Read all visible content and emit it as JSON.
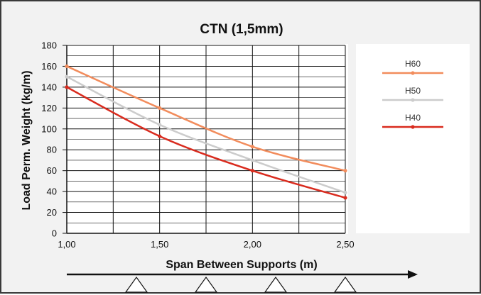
{
  "chart_data": {
    "type": "line",
    "title": "CTN (1,5mm)",
    "xlabel": "Span Between Supports (m)",
    "ylabel": "Load Perm. Weight (kg/m)",
    "xlim": [
      1.0,
      2.5
    ],
    "ylim": [
      0,
      180
    ],
    "x_ticks": [
      "1,00",
      "1,50",
      "2,00",
      "2,50"
    ],
    "x_tick_values": [
      1.0,
      1.5,
      2.0,
      2.5
    ],
    "y_ticks": [
      "0",
      "20",
      "40",
      "60",
      "80",
      "100",
      "120",
      "140",
      "160",
      "180"
    ],
    "grid": true,
    "legend_position": "right",
    "series": [
      {
        "name": "H60",
        "color": "#f28c5c",
        "x": [
          1.0,
          1.5,
          2.0,
          2.5
        ],
        "values": [
          160,
          120,
          83,
          60
        ]
      },
      {
        "name": "H50",
        "color": "#cccccc",
        "x": [
          1.0,
          1.5,
          2.0,
          2.5
        ],
        "values": [
          150,
          104,
          70,
          39
        ]
      },
      {
        "name": "H40",
        "color": "#d92b1e",
        "x": [
          1.0,
          1.5,
          2.0,
          2.5
        ],
        "values": [
          140,
          93,
          60,
          34
        ]
      }
    ]
  }
}
